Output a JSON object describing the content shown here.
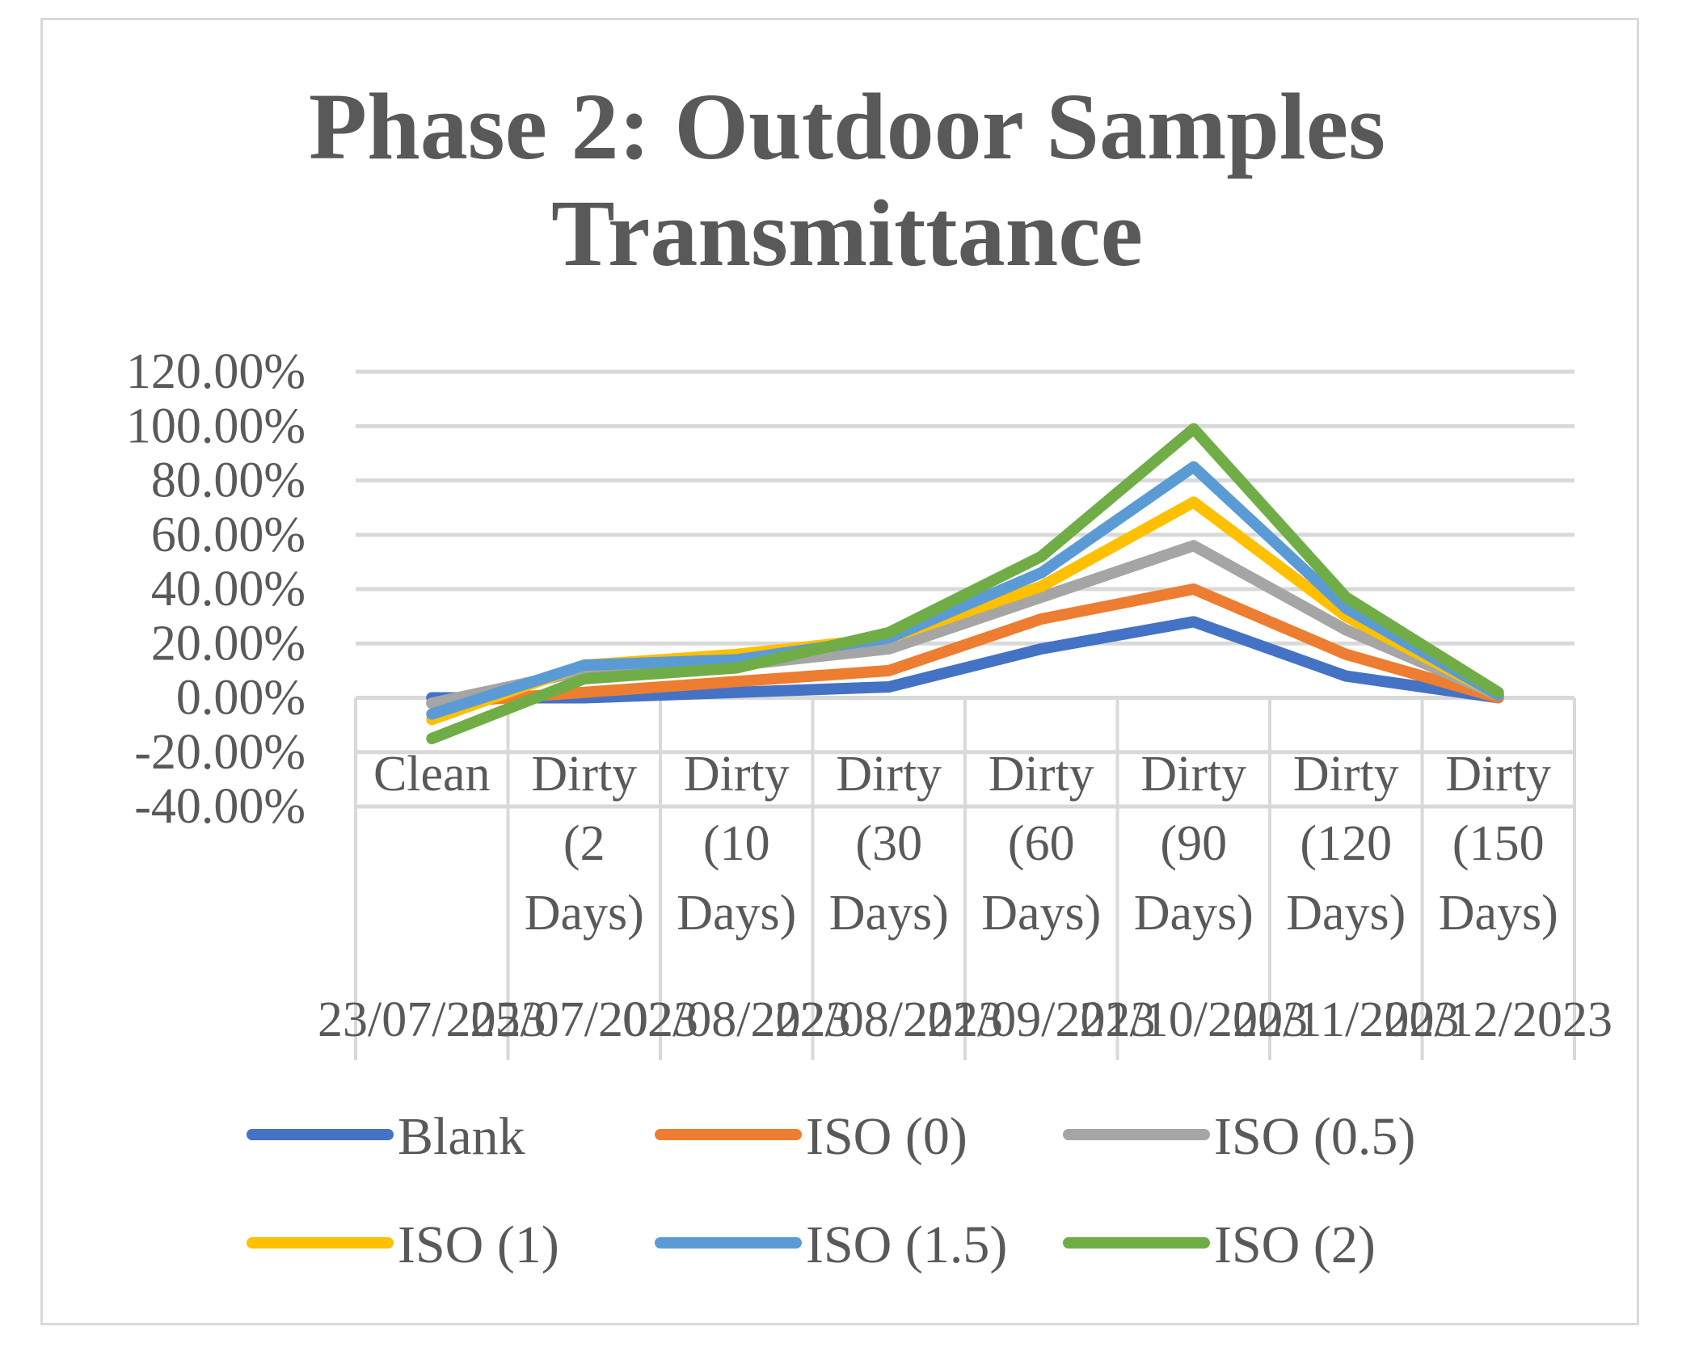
{
  "chart_data": {
    "type": "line",
    "title_lines": [
      "Phase 2: Outdoor Samples",
      "Transmittance"
    ],
    "categories": [
      "Clean",
      "Dirty (2 Days)",
      "Dirty (10 Days)",
      "Dirty (30 Days)",
      "Dirty (60 Days)",
      "Dirty (90 Days)",
      "Dirty (120 Days)",
      "Dirty (150 Days)"
    ],
    "category_lines": [
      [
        "Clean"
      ],
      [
        "Dirty",
        "(2",
        "Days)"
      ],
      [
        "Dirty",
        "(10",
        "Days)"
      ],
      [
        "Dirty",
        "(30",
        "Days)"
      ],
      [
        "Dirty",
        "(60",
        "Days)"
      ],
      [
        "Dirty",
        "(90",
        "Days)"
      ],
      [
        "Dirty",
        "(120",
        "Days)"
      ],
      [
        "Dirty",
        "(150",
        "Days)"
      ]
    ],
    "dates": [
      "23/07/2023",
      "25/07/2023",
      "02/08/2023",
      "22/08/2023",
      "21/09/2023",
      "21/10/2023",
      "20/11/2023",
      "20/12/2023"
    ],
    "y_ticks": [
      "120.00%",
      "100.00%",
      "80.00%",
      "60.00%",
      "40.00%",
      "20.00%",
      "0.00%",
      "-20.00%",
      "-40.00%"
    ],
    "ylim": [
      -40,
      120
    ],
    "y_step": 20,
    "grid": true,
    "legend_position": "bottom",
    "series": [
      {
        "name": "Blank",
        "color": "#4472C4",
        "values": [
          0,
          0,
          2,
          4,
          18,
          28,
          8,
          0
        ]
      },
      {
        "name": "ISO (0)",
        "color": "#ED7D31",
        "values": [
          -2,
          2,
          6,
          10,
          29,
          40,
          16,
          0
        ]
      },
      {
        "name": "ISO (0.5)",
        "color": "#A5A5A5",
        "values": [
          -2,
          10,
          12,
          18,
          37,
          56,
          25,
          1
        ]
      },
      {
        "name": "ISO (1)",
        "color": "#FFC000",
        "values": [
          -8,
          12,
          16,
          22,
          41,
          72,
          30,
          1
        ]
      },
      {
        "name": "ISO (1.5)",
        "color": "#5B9BD5",
        "values": [
          -6,
          12,
          14,
          22,
          46,
          85,
          33,
          1
        ]
      },
      {
        "name": "ISO (2)",
        "color": "#70AD47",
        "values": [
          -15,
          7,
          11,
          24,
          52,
          99,
          37,
          2
        ]
      }
    ]
  }
}
